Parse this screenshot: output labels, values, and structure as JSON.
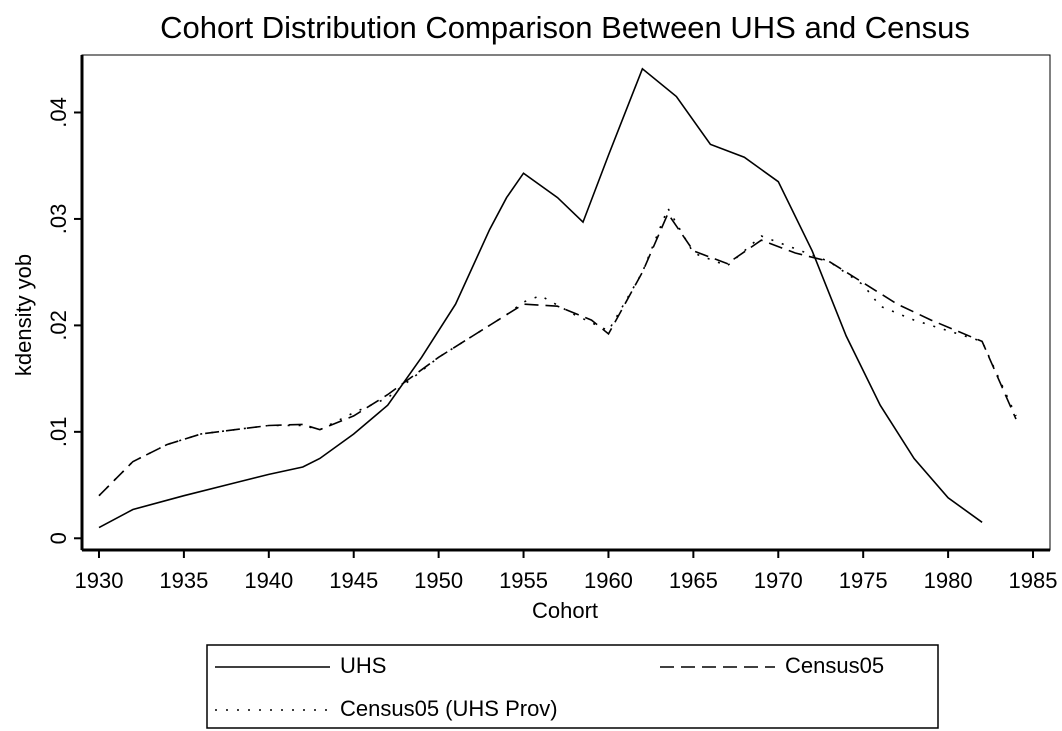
{
  "chart_data": {
    "type": "line",
    "title": "Cohort Distribution Comparison Between UHS and Census",
    "x_label": "Cohort",
    "y_label": "kdensity yob",
    "xlim": [
      1929,
      1986
    ],
    "ylim": [
      -0.0011,
      0.0454
    ],
    "xticks": [
      1930,
      1935,
      1940,
      1945,
      1950,
      1955,
      1960,
      1965,
      1970,
      1975,
      1980,
      1985
    ],
    "yticks": [
      0,
      {
        "value": 0.01,
        "label": ".01"
      },
      {
        "value": 0.02,
        "label": ".02"
      },
      {
        "value": 0.03,
        "label": ".03"
      },
      {
        "value": 0.04,
        "label": ".04"
      }
    ],
    "series": [
      {
        "name": "UHS",
        "color": "#000000",
        "dash": "solid",
        "x": [
          1930,
          1932,
          1935,
          1938,
          1940,
          1942,
          1943,
          1945,
          1947,
          1949,
          1951,
          1953,
          1954,
          1955,
          1957,
          1958.5,
          1960,
          1962,
          1964,
          1966,
          1968,
          1970,
          1972,
          1974,
          1976,
          1978,
          1980,
          1982
        ],
        "values": [
          0.001,
          0.0027,
          0.004,
          0.0052,
          0.006,
          0.0067,
          0.0075,
          0.0098,
          0.0125,
          0.017,
          0.022,
          0.029,
          0.032,
          0.0343,
          0.032,
          0.0297,
          0.036,
          0.0441,
          0.0415,
          0.037,
          0.0358,
          0.0335,
          0.027,
          0.019,
          0.0125,
          0.0075,
          0.0038,
          0.0015
        ]
      },
      {
        "name": "Census05",
        "color": "#000000",
        "dash": "dashed",
        "x": [
          1930,
          1932,
          1934,
          1936,
          1938,
          1940,
          1942,
          1943,
          1945,
          1947,
          1950,
          1952,
          1954,
          1955,
          1957,
          1959,
          1960,
          1962,
          1963.5,
          1965,
          1967,
          1969,
          1971,
          1973,
          1975,
          1977,
          1979,
          1982,
          1984
        ],
        "values": [
          0.004,
          0.0072,
          0.0088,
          0.0098,
          0.0102,
          0.0106,
          0.0107,
          0.0102,
          0.0115,
          0.0135,
          0.017,
          0.019,
          0.021,
          0.022,
          0.0218,
          0.0205,
          0.0192,
          0.025,
          0.0305,
          0.027,
          0.0258,
          0.028,
          0.0268,
          0.026,
          0.024,
          0.022,
          0.0205,
          0.0185,
          0.0112
        ]
      },
      {
        "name": "Census05 (UHS Prov)",
        "color": "#000000",
        "dash": "dotted",
        "x": [
          1930,
          1932,
          1934,
          1936,
          1938,
          1940,
          1942,
          1943,
          1945,
          1947,
          1950,
          1952,
          1954,
          1955,
          1956,
          1958,
          1960,
          1962,
          1963.5,
          1965,
          1967,
          1969,
          1971,
          1973,
          1975,
          1976,
          1978,
          1982,
          1984
        ],
        "values": [
          0.004,
          0.0072,
          0.0088,
          0.0098,
          0.0102,
          0.0106,
          0.0106,
          0.0102,
          0.0118,
          0.0132,
          0.017,
          0.019,
          0.021,
          0.0222,
          0.0228,
          0.021,
          0.0195,
          0.025,
          0.031,
          0.0268,
          0.0256,
          0.0284,
          0.0272,
          0.026,
          0.0238,
          0.0218,
          0.0205,
          0.0185,
          0.0115
        ]
      }
    ]
  }
}
